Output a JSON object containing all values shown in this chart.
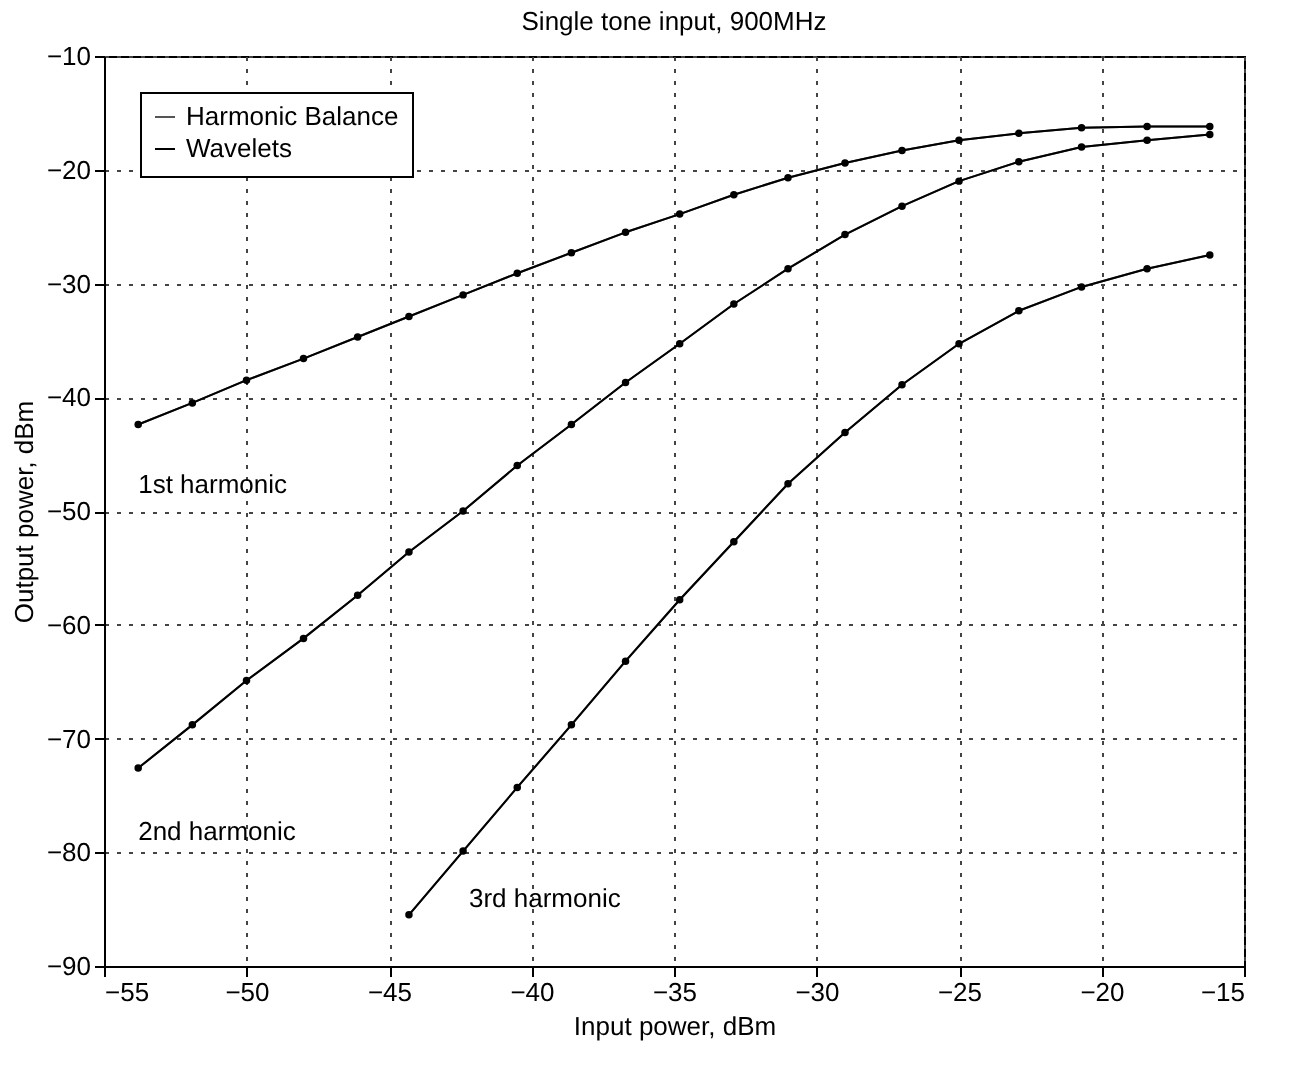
{
  "chart_data": {
    "type": "line",
    "title": "Single tone input, 900MHz",
    "xlabel": "Input power, dBm",
    "ylabel": "Output power, dBm",
    "x": [
      -53.8,
      -51.9,
      -50,
      -48,
      -46.1,
      -44.3,
      -42.4,
      -40.5,
      -38.6,
      -36.7,
      -34.8,
      -32.9,
      -31,
      -29,
      -27,
      -25,
      -22.9,
      -20.7,
      -18.4,
      -16.2,
      null,
      -53.8,
      -51.9,
      -50,
      -48,
      -46.1,
      -44.3,
      -42.4,
      -40.5,
      -38.6,
      -36.7,
      -34.8,
      -32.9,
      -31,
      -29,
      -27,
      -25,
      -22.9,
      -20.7,
      -18.4,
      -16.2,
      null,
      -44.3,
      -42.4,
      -40.5,
      -38.6,
      -36.7,
      -34.8,
      -32.9,
      -31,
      -29,
      -27,
      -25,
      -22.9,
      -20.7,
      -18.4,
      -16.2
    ],
    "series": [
      {
        "name": "Harmonic Balance",
        "color": "#555555",
        "marker": "none",
        "values": [
          -42.4,
          -40.5,
          -38.5,
          -36.6,
          -34.7,
          -32.9,
          -31.0,
          -29.1,
          -27.3,
          -25.5,
          -23.9,
          -22.2,
          -20.7,
          -19.4,
          -18.3,
          -17.4,
          -16.8,
          -16.3,
          -16.2,
          -16.2,
          null,
          -72.6,
          -68.8,
          -64.9,
          -61.2,
          -57.4,
          -53.6,
          -50.0,
          -46.0,
          -42.4,
          -38.7,
          -35.3,
          -31.8,
          -28.7,
          -25.7,
          -23.2,
          -21.0,
          -19.3,
          -18.0,
          -17.4,
          -16.9,
          null,
          -85.5,
          -79.9,
          -74.3,
          -68.8,
          -63.2,
          -57.8,
          -52.7,
          -47.6,
          -43.1,
          -38.9,
          -35.3,
          -32.4,
          -30.3,
          -28.7,
          -27.5
        ]
      },
      {
        "name": "Wavelets",
        "color": "#000000",
        "marker": "circle",
        "values": [
          -42.4,
          -40.5,
          -38.5,
          -36.6,
          -34.7,
          -32.9,
          -31.0,
          -29.1,
          -27.3,
          -25.5,
          -23.9,
          -22.2,
          -20.7,
          -19.4,
          -18.3,
          -17.4,
          -16.8,
          -16.3,
          -16.2,
          -16.2,
          null,
          -72.6,
          -68.8,
          -64.9,
          -61.2,
          -57.4,
          -53.6,
          -50.0,
          -46.0,
          -42.4,
          -38.7,
          -35.3,
          -31.8,
          -28.7,
          -25.7,
          -23.2,
          -21.0,
          -19.3,
          -18.0,
          -17.4,
          -16.9,
          null,
          -85.5,
          -79.9,
          -74.3,
          -68.8,
          -63.2,
          -57.8,
          -52.7,
          -47.6,
          -43.1,
          -38.9,
          -35.3,
          -32.4,
          -30.3,
          -28.7,
          -27.5
        ]
      }
    ],
    "xlim": [
      -55,
      -15
    ],
    "xticks": [
      -55,
      -50,
      -45,
      -40,
      -35,
      -30,
      -25,
      -20,
      -15
    ],
    "ylim": [
      -90,
      -10
    ],
    "yticks": [
      -90,
      -80,
      -70,
      -60,
      -50,
      -40,
      -30,
      -20,
      -10
    ],
    "grid": true,
    "legend": "top left",
    "line_style": "solid",
    "annotations": [
      "1st harmonic",
      "2nd harmonic",
      "3rd harmonic"
    ]
  }
}
